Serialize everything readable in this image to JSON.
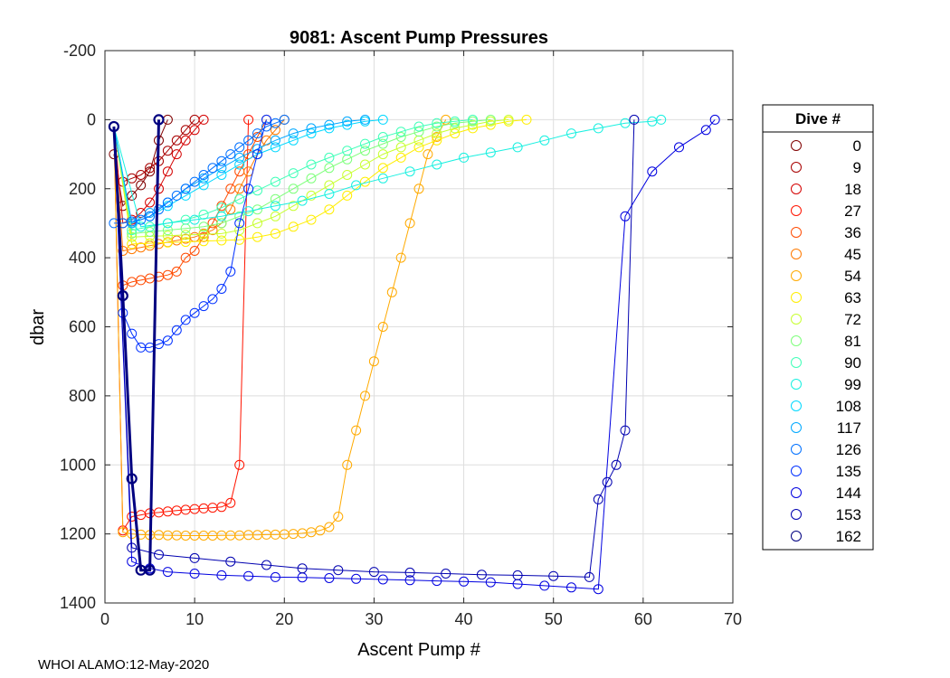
{
  "footer": "WHOI ALAMO:12-May-2020",
  "chart_data": {
    "type": "scatter",
    "title": "9081: Ascent Pump Pressures",
    "xlabel": "Ascent Pump #",
    "ylabel": "dbar",
    "xlim": [
      0,
      70
    ],
    "ylim": [
      -200,
      1400
    ],
    "y_reversed": true,
    "xticks": [
      0,
      10,
      20,
      30,
      40,
      50,
      60,
      70
    ],
    "yticks": [
      -200,
      0,
      200,
      400,
      600,
      800,
      1000,
      1200,
      1400
    ],
    "grid": true,
    "legend": {
      "title": "Dive #",
      "placement": "outside-right",
      "entries": [
        {
          "label": "0",
          "color": "#800000"
        },
        {
          "label": "9",
          "color": "#a80000"
        },
        {
          "label": "18",
          "color": "#d40000"
        },
        {
          "label": "27",
          "color": "#ff1400"
        },
        {
          "label": "36",
          "color": "#ff4a00"
        },
        {
          "label": "45",
          "color": "#ff7a00"
        },
        {
          "label": "54",
          "color": "#ffaa00"
        },
        {
          "label": "63",
          "color": "#ffee00"
        },
        {
          "label": "72",
          "color": "#c8ff30"
        },
        {
          "label": "81",
          "color": "#7dff7a"
        },
        {
          "label": "90",
          "color": "#40ffb8"
        },
        {
          "label": "99",
          "color": "#18f0e0"
        },
        {
          "label": "108",
          "color": "#00d8ff"
        },
        {
          "label": "117",
          "color": "#00a8ff"
        },
        {
          "label": "126",
          "color": "#0070ff"
        },
        {
          "label": "135",
          "color": "#0030ff"
        },
        {
          "label": "144",
          "color": "#0000e0"
        },
        {
          "label": "153",
          "color": "#0000b0"
        },
        {
          "label": "162",
          "color": "#000080"
        }
      ]
    },
    "series": [
      {
        "name": "0",
        "color": "#800000",
        "x": [
          1,
          2,
          3,
          4,
          5,
          6,
          7
        ],
        "y": [
          100,
          250,
          220,
          190,
          150,
          60,
          0
        ]
      },
      {
        "name": "9",
        "color": "#a80000",
        "x": [
          1,
          2,
          3,
          4,
          5,
          6,
          7,
          8,
          9,
          10
        ],
        "y": [
          20,
          180,
          170,
          160,
          140,
          120,
          90,
          60,
          30,
          0
        ]
      },
      {
        "name": "18",
        "color": "#d40000",
        "x": [
          1,
          2,
          3,
          4,
          5,
          6,
          7,
          8,
          9,
          10,
          11
        ],
        "y": [
          20,
          300,
          290,
          270,
          240,
          200,
          150,
          100,
          60,
          30,
          0
        ]
      },
      {
        "name": "27",
        "color": "#ff1400",
        "x": [
          1,
          2,
          3,
          4,
          5,
          6,
          7,
          8,
          9,
          10,
          11,
          12,
          13,
          14,
          15,
          16
        ],
        "y": [
          20,
          1190,
          1150,
          1145,
          1140,
          1138,
          1135,
          1132,
          1130,
          1128,
          1126,
          1124,
          1122,
          1110,
          1000,
          0
        ]
      },
      {
        "name": "36",
        "color": "#ff4a00",
        "x": [
          1,
          2,
          3,
          4,
          5,
          6,
          7,
          8,
          9,
          10,
          11,
          12,
          13,
          14,
          15,
          16,
          17,
          18
        ],
        "y": [
          20,
          480,
          470,
          465,
          460,
          455,
          450,
          440,
          400,
          380,
          340,
          300,
          250,
          200,
          150,
          100,
          50,
          0
        ]
      },
      {
        "name": "45",
        "color": "#ff7a00",
        "x": [
          1,
          2,
          3,
          4,
          5,
          6,
          7,
          8,
          9,
          10,
          11,
          12,
          13,
          14,
          15,
          16,
          17,
          18,
          19,
          20
        ],
        "y": [
          20,
          380,
          375,
          370,
          365,
          360,
          355,
          350,
          345,
          340,
          330,
          320,
          300,
          260,
          200,
          150,
          100,
          60,
          30,
          0
        ]
      },
      {
        "name": "54",
        "color": "#ffaa00",
        "x": [
          1,
          2,
          3,
          4,
          5,
          6,
          7,
          8,
          9,
          10,
          11,
          12,
          13,
          14,
          15,
          16,
          17,
          18,
          19,
          20,
          21,
          22,
          23,
          24,
          25,
          26,
          27,
          28,
          29,
          30,
          31,
          32,
          33,
          34,
          35,
          36,
          37,
          38
        ],
        "y": [
          20,
          1195,
          1200,
          1202,
          1203,
          1203,
          1204,
          1204,
          1205,
          1205,
          1205,
          1205,
          1204,
          1204,
          1204,
          1203,
          1203,
          1202,
          1202,
          1201,
          1200,
          1198,
          1195,
          1190,
          1180,
          1150,
          1000,
          900,
          800,
          700,
          600,
          500,
          400,
          300,
          200,
          100,
          50,
          0
        ]
      },
      {
        "name": "63",
        "color": "#ffee00",
        "x": [
          1,
          3,
          5,
          7,
          9,
          11,
          13,
          15,
          17,
          19,
          21,
          23,
          25,
          27,
          29,
          31,
          33,
          35,
          37,
          39,
          41,
          43,
          45,
          47
        ],
        "y": [
          20,
          360,
          358,
          356,
          354,
          352,
          350,
          348,
          340,
          330,
          310,
          290,
          260,
          220,
          180,
          140,
          110,
          80,
          60,
          40,
          25,
          15,
          5,
          0
        ]
      },
      {
        "name": "72",
        "color": "#c8ff30",
        "x": [
          1,
          3,
          5,
          7,
          9,
          11,
          13,
          15,
          17,
          19,
          21,
          23,
          25,
          27,
          29,
          31,
          33,
          35,
          37,
          39,
          41,
          43,
          45
        ],
        "y": [
          20,
          340,
          338,
          336,
          334,
          332,
          330,
          320,
          300,
          280,
          250,
          220,
          190,
          160,
          130,
          100,
          80,
          60,
          40,
          25,
          15,
          5,
          0
        ]
      },
      {
        "name": "81",
        "color": "#7dff7a",
        "x": [
          1,
          3,
          5,
          7,
          9,
          11,
          13,
          15,
          17,
          19,
          21,
          23,
          25,
          27,
          29,
          31,
          33,
          35,
          37,
          39,
          41,
          43
        ],
        "y": [
          20,
          330,
          325,
          320,
          315,
          310,
          300,
          280,
          260,
          230,
          200,
          170,
          140,
          115,
          90,
          70,
          50,
          35,
          20,
          10,
          5,
          0
        ]
      },
      {
        "name": "90",
        "color": "#40ffb8",
        "x": [
          1,
          3,
          5,
          7,
          9,
          11,
          13,
          15,
          17,
          19,
          21,
          23,
          25,
          27,
          29,
          31,
          33,
          35,
          37,
          39,
          41
        ],
        "y": [
          20,
          320,
          310,
          300,
          290,
          275,
          255,
          230,
          205,
          180,
          155,
          130,
          110,
          90,
          70,
          50,
          35,
          20,
          10,
          5,
          0
        ]
      },
      {
        "name": "99",
        "color": "#18f0e0",
        "x": [
          1,
          4,
          7,
          10,
          13,
          16,
          19,
          22,
          25,
          28,
          31,
          34,
          37,
          40,
          43,
          46,
          49,
          52,
          55,
          58,
          61,
          62
        ],
        "y": [
          20,
          310,
          300,
          290,
          280,
          265,
          250,
          235,
          215,
          190,
          170,
          150,
          130,
          110,
          95,
          80,
          60,
          40,
          25,
          10,
          5,
          0
        ]
      },
      {
        "name": "108",
        "color": "#00d8ff",
        "x": [
          1,
          3,
          5,
          7,
          9,
          11,
          13,
          15,
          17,
          19,
          21,
          23,
          25,
          27,
          29,
          31
        ],
        "y": [
          20,
          300,
          280,
          250,
          220,
          190,
          160,
          130,
          100,
          80,
          60,
          40,
          25,
          15,
          5,
          0
        ]
      },
      {
        "name": "117",
        "color": "#00a8ff",
        "x": [
          1,
          3,
          5,
          7,
          9,
          11,
          13,
          15,
          17,
          19,
          21,
          23,
          25,
          27,
          29
        ],
        "y": [
          20,
          300,
          270,
          240,
          200,
          170,
          140,
          110,
          85,
          60,
          40,
          25,
          15,
          5,
          0
        ]
      },
      {
        "name": "126",
        "color": "#0070ff",
        "x": [
          1,
          2,
          3,
          4,
          5,
          6,
          7,
          8,
          9,
          10,
          11,
          12,
          13,
          14,
          15,
          16,
          17,
          18,
          19,
          20
        ],
        "y": [
          300,
          300,
          295,
          290,
          280,
          260,
          240,
          220,
          200,
          180,
          160,
          140,
          120,
          100,
          80,
          60,
          40,
          20,
          10,
          0
        ]
      },
      {
        "name": "135",
        "color": "#0030ff",
        "x": [
          1,
          2,
          3,
          4,
          5,
          6,
          7,
          8,
          9,
          10,
          11,
          12,
          13,
          14,
          15,
          16,
          17,
          18
        ],
        "y": [
          20,
          560,
          620,
          660,
          660,
          650,
          640,
          610,
          580,
          560,
          540,
          520,
          490,
          440,
          300,
          200,
          100,
          0
        ]
      },
      {
        "name": "144",
        "color": "#0000e0",
        "x": [
          1,
          3,
          5,
          7,
          10,
          13,
          16,
          19,
          22,
          25,
          28,
          31,
          34,
          37,
          40,
          43,
          46,
          49,
          52,
          55,
          58,
          61,
          64,
          67,
          68
        ],
        "y": [
          20,
          1280,
          1300,
          1310,
          1315,
          1320,
          1322,
          1325,
          1326,
          1328,
          1330,
          1332,
          1334,
          1336,
          1338,
          1340,
          1345,
          1350,
          1355,
          1360,
          280,
          150,
          80,
          30,
          0
        ]
      },
      {
        "name": "153",
        "color": "#0000b0",
        "x": [
          1,
          3,
          6,
          10,
          14,
          18,
          22,
          26,
          30,
          34,
          38,
          42,
          46,
          50,
          54,
          55,
          56,
          57,
          58,
          59
        ],
        "y": [
          20,
          1240,
          1260,
          1270,
          1280,
          1290,
          1300,
          1305,
          1310,
          1312,
          1315,
          1318,
          1320,
          1322,
          1325,
          1100,
          1050,
          1000,
          900,
          0
        ]
      },
      {
        "name": "162",
        "color": "#000080",
        "x": [
          1,
          2,
          3,
          4,
          5,
          6
        ],
        "y": [
          20,
          510,
          1040,
          1305,
          1305,
          0
        ]
      }
    ]
  }
}
